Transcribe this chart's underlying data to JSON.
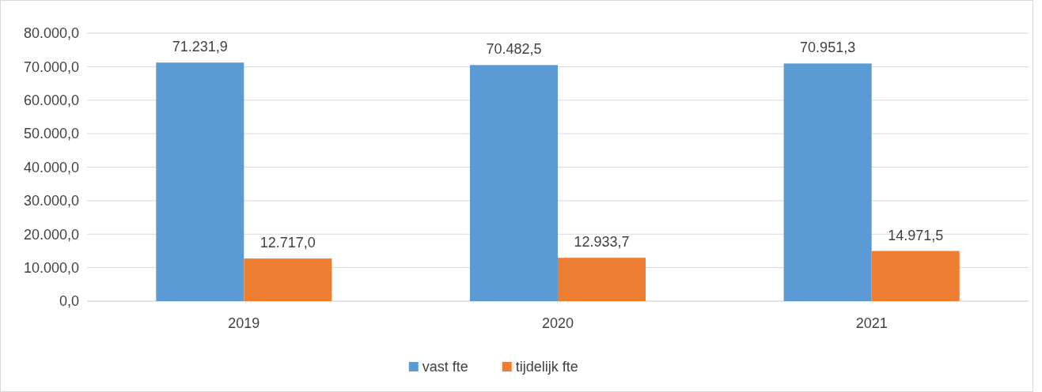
{
  "chart_data": {
    "type": "bar",
    "categories": [
      "2019",
      "2020",
      "2021"
    ],
    "series": [
      {
        "name": "vast fte",
        "color": "#5b9bd5",
        "values": [
          71231.9,
          70482.5,
          70951.3
        ],
        "value_labels": [
          "71.231,9",
          "70.482,5",
          "70.951,3"
        ]
      },
      {
        "name": "tijdelijk fte",
        "color": "#ed7d31",
        "values": [
          12717.0,
          12933.7,
          14971.5
        ],
        "value_labels": [
          "12.717,0",
          "12.933,7",
          "14.971,5"
        ]
      }
    ],
    "ylim": [
      0,
      80000
    ],
    "yticks": [
      {
        "value": 0,
        "label": "0,0"
      },
      {
        "value": 10000,
        "label": "10.000,0"
      },
      {
        "value": 20000,
        "label": "20.000,0"
      },
      {
        "value": 30000,
        "label": "30.000,0"
      },
      {
        "value": 40000,
        "label": "40.000,0"
      },
      {
        "value": 50000,
        "label": "50.000,0"
      },
      {
        "value": 60000,
        "label": "60.000,0"
      },
      {
        "value": 70000,
        "label": "70.000,0"
      },
      {
        "value": 80000,
        "label": "80.000,0"
      }
    ],
    "grid": "y",
    "legend": "bottom"
  }
}
